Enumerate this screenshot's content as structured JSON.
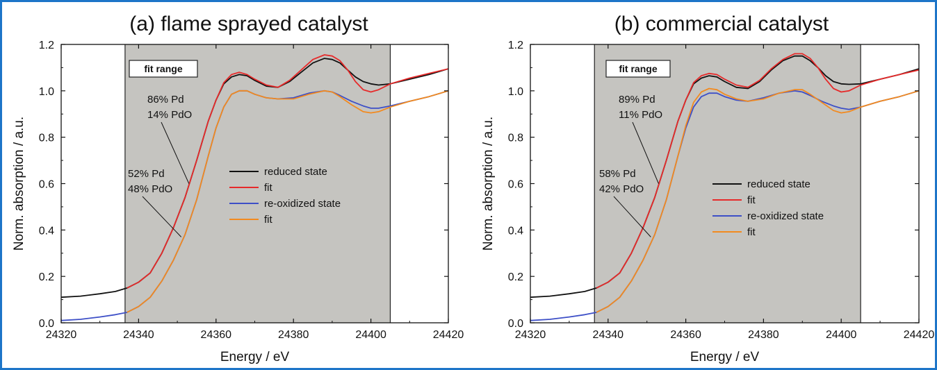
{
  "chart_data": [
    {
      "type": "line",
      "title": "(a) flame sprayed catalyst",
      "xlabel": "Energy / eV",
      "ylabel": "Norm. absorption / a.u.",
      "xlim": [
        24320,
        24420
      ],
      "ylim": [
        0,
        1.2
      ],
      "xticks": [
        24320,
        24340,
        24360,
        24380,
        24400,
        24420
      ],
      "yticks": [
        0.0,
        0.2,
        0.4,
        0.6,
        0.8,
        1.0,
        1.2
      ],
      "fit_range": [
        24336.5,
        24405
      ],
      "fit_range_label": "fit range",
      "legend_position": "center-right",
      "series": [
        {
          "name": "reduced state",
          "color": "#111111",
          "x": [
            24320,
            24325,
            24330,
            24334,
            24337,
            24340,
            24343,
            24346,
            24349,
            24352,
            24355,
            24358,
            24360,
            24362,
            24364,
            24366,
            24368,
            24370,
            24373,
            24376,
            24379,
            24382,
            24385,
            24388,
            24390,
            24392,
            24394,
            24396,
            24398,
            24400,
            24402,
            24405,
            24410,
            24415,
            24420
          ],
          "y": [
            0.11,
            0.115,
            0.125,
            0.135,
            0.15,
            0.175,
            0.215,
            0.3,
            0.41,
            0.54,
            0.7,
            0.87,
            0.96,
            1.03,
            1.06,
            1.07,
            1.065,
            1.045,
            1.02,
            1.015,
            1.04,
            1.08,
            1.12,
            1.14,
            1.135,
            1.12,
            1.09,
            1.06,
            1.04,
            1.03,
            1.025,
            1.03,
            1.05,
            1.07,
            1.095
          ]
        },
        {
          "name": "fit",
          "color": "#e62a2a",
          "x": [
            24337,
            24340,
            24343,
            24346,
            24349,
            24352,
            24355,
            24358,
            24360,
            24362,
            24364,
            24366,
            24368,
            24370,
            24373,
            24376,
            24379,
            24382,
            24385,
            24388,
            24390,
            24392,
            24394,
            24396,
            24398,
            24400,
            24402,
            24405,
            24410,
            24415,
            24420
          ],
          "y": [
            0.15,
            0.175,
            0.215,
            0.3,
            0.41,
            0.54,
            0.7,
            0.87,
            0.96,
            1.035,
            1.07,
            1.08,
            1.07,
            1.05,
            1.025,
            1.015,
            1.045,
            1.09,
            1.135,
            1.155,
            1.15,
            1.13,
            1.09,
            1.04,
            1.005,
            0.995,
            1.005,
            1.03,
            1.055,
            1.075,
            1.095
          ]
        },
        {
          "name": "re-oxidized state",
          "color": "#3d4fc7",
          "x": [
            24320,
            24325,
            24330,
            24334,
            24337,
            24340,
            24343,
            24346,
            24349,
            24352,
            24355,
            24358,
            24360,
            24362,
            24364,
            24366,
            24368,
            24370,
            24373,
            24376,
            24380,
            24384,
            24388,
            24390,
            24392,
            24395,
            24398,
            24400,
            24402,
            24405,
            24410,
            24415,
            24420
          ],
          "y": [
            0.01,
            0.015,
            0.025,
            0.035,
            0.045,
            0.07,
            0.11,
            0.18,
            0.27,
            0.38,
            0.53,
            0.72,
            0.84,
            0.93,
            0.985,
            1.0,
            1.0,
            0.985,
            0.97,
            0.965,
            0.97,
            0.99,
            1.0,
            0.995,
            0.98,
            0.955,
            0.935,
            0.925,
            0.925,
            0.935,
            0.955,
            0.975,
            1.0
          ]
        },
        {
          "name": "fit",
          "color": "#f28a1f",
          "x": [
            24337,
            24340,
            24343,
            24346,
            24349,
            24352,
            24355,
            24358,
            24360,
            24362,
            24364,
            24366,
            24368,
            24370,
            24373,
            24376,
            24380,
            24384,
            24388,
            24390,
            24392,
            24395,
            24398,
            24400,
            24402,
            24405,
            24410,
            24415,
            24420
          ],
          "y": [
            0.045,
            0.07,
            0.11,
            0.18,
            0.27,
            0.38,
            0.53,
            0.72,
            0.84,
            0.93,
            0.985,
            1.0,
            1.0,
            0.985,
            0.97,
            0.965,
            0.965,
            0.985,
            1.0,
            0.995,
            0.975,
            0.94,
            0.91,
            0.905,
            0.91,
            0.93,
            0.955,
            0.975,
            1.0
          ]
        }
      ],
      "annotations": [
        {
          "lines": [
            "86% Pd",
            "14% PdO"
          ],
          "target_x": 24353,
          "target_y": 0.6
        },
        {
          "lines": [
            "52% Pd",
            "48% PdO"
          ],
          "target_x": 24351,
          "target_y": 0.37
        }
      ]
    },
    {
      "type": "line",
      "title": "(b) commercial catalyst",
      "xlabel": "Energy / eV",
      "ylabel": "Norm. absorption / a.u.",
      "xlim": [
        24320,
        24420
      ],
      "ylim": [
        0,
        1.2
      ],
      "xticks": [
        24320,
        24340,
        24360,
        24380,
        24400,
        24420
      ],
      "yticks": [
        0.0,
        0.2,
        0.4,
        0.6,
        0.8,
        1.0,
        1.2
      ],
      "fit_range": [
        24336.5,
        24405
      ],
      "fit_range_label": "fit range",
      "legend_position": "center-right",
      "series": [
        {
          "name": "reduced state",
          "color": "#111111",
          "x": [
            24320,
            24325,
            24330,
            24334,
            24337,
            24340,
            24343,
            24346,
            24349,
            24352,
            24355,
            24358,
            24360,
            24362,
            24364,
            24366,
            24368,
            24370,
            24373,
            24376,
            24379,
            24382,
            24385,
            24388,
            24390,
            24392,
            24394,
            24396,
            24398,
            24400,
            24402,
            24405,
            24410,
            24415,
            24420
          ],
          "y": [
            0.11,
            0.115,
            0.125,
            0.135,
            0.15,
            0.175,
            0.215,
            0.3,
            0.41,
            0.54,
            0.7,
            0.87,
            0.96,
            1.03,
            1.055,
            1.065,
            1.06,
            1.04,
            1.015,
            1.01,
            1.04,
            1.09,
            1.13,
            1.15,
            1.15,
            1.13,
            1.1,
            1.065,
            1.04,
            1.03,
            1.028,
            1.03,
            1.05,
            1.07,
            1.095
          ]
        },
        {
          "name": "fit",
          "color": "#e62a2a",
          "x": [
            24337,
            24340,
            24343,
            24346,
            24349,
            24352,
            24355,
            24358,
            24360,
            24362,
            24364,
            24366,
            24368,
            24370,
            24373,
            24376,
            24379,
            24382,
            24385,
            24388,
            24390,
            24392,
            24394,
            24396,
            24398,
            24400,
            24402,
            24405,
            24410,
            24415,
            24420
          ],
          "y": [
            0.15,
            0.175,
            0.215,
            0.3,
            0.41,
            0.54,
            0.7,
            0.87,
            0.96,
            1.035,
            1.065,
            1.075,
            1.07,
            1.05,
            1.025,
            1.015,
            1.045,
            1.095,
            1.135,
            1.16,
            1.16,
            1.14,
            1.1,
            1.05,
            1.01,
            0.995,
            1.0,
            1.025,
            1.05,
            1.07,
            1.09
          ]
        },
        {
          "name": "re-oxidized state",
          "color": "#3d4fc7",
          "x": [
            24320,
            24325,
            24330,
            24334,
            24337,
            24340,
            24343,
            24346,
            24349,
            24352,
            24355,
            24358,
            24360,
            24362,
            24364,
            24366,
            24368,
            24370,
            24373,
            24376,
            24380,
            24384,
            24388,
            24390,
            24392,
            24395,
            24398,
            24400,
            24402,
            24405,
            24410,
            24415,
            24420
          ],
          "y": [
            0.01,
            0.015,
            0.025,
            0.035,
            0.045,
            0.07,
            0.11,
            0.18,
            0.27,
            0.38,
            0.53,
            0.72,
            0.84,
            0.93,
            0.975,
            0.99,
            0.99,
            0.975,
            0.96,
            0.955,
            0.97,
            0.99,
            1.0,
            0.995,
            0.98,
            0.955,
            0.935,
            0.925,
            0.92,
            0.93,
            0.955,
            0.975,
            1.0
          ]
        },
        {
          "name": "fit",
          "color": "#f28a1f",
          "x": [
            24337,
            24340,
            24343,
            24346,
            24349,
            24352,
            24355,
            24358,
            24360,
            24362,
            24364,
            24366,
            24368,
            24370,
            24373,
            24376,
            24380,
            24384,
            24388,
            24390,
            24392,
            24395,
            24398,
            24400,
            24402,
            24405,
            24410,
            24415,
            24420
          ],
          "y": [
            0.045,
            0.07,
            0.11,
            0.18,
            0.27,
            0.38,
            0.53,
            0.72,
            0.85,
            0.95,
            0.995,
            1.01,
            1.005,
            0.985,
            0.965,
            0.955,
            0.965,
            0.99,
            1.005,
            1.005,
            0.985,
            0.95,
            0.915,
            0.905,
            0.91,
            0.93,
            0.955,
            0.975,
            1.0
          ]
        }
      ],
      "annotations": [
        {
          "lines": [
            "89% Pd",
            "11% PdO"
          ],
          "target_x": 24353,
          "target_y": 0.6
        },
        {
          "lines": [
            "58% Pd",
            "42% PdO"
          ],
          "target_x": 24351,
          "target_y": 0.37
        }
      ]
    }
  ]
}
